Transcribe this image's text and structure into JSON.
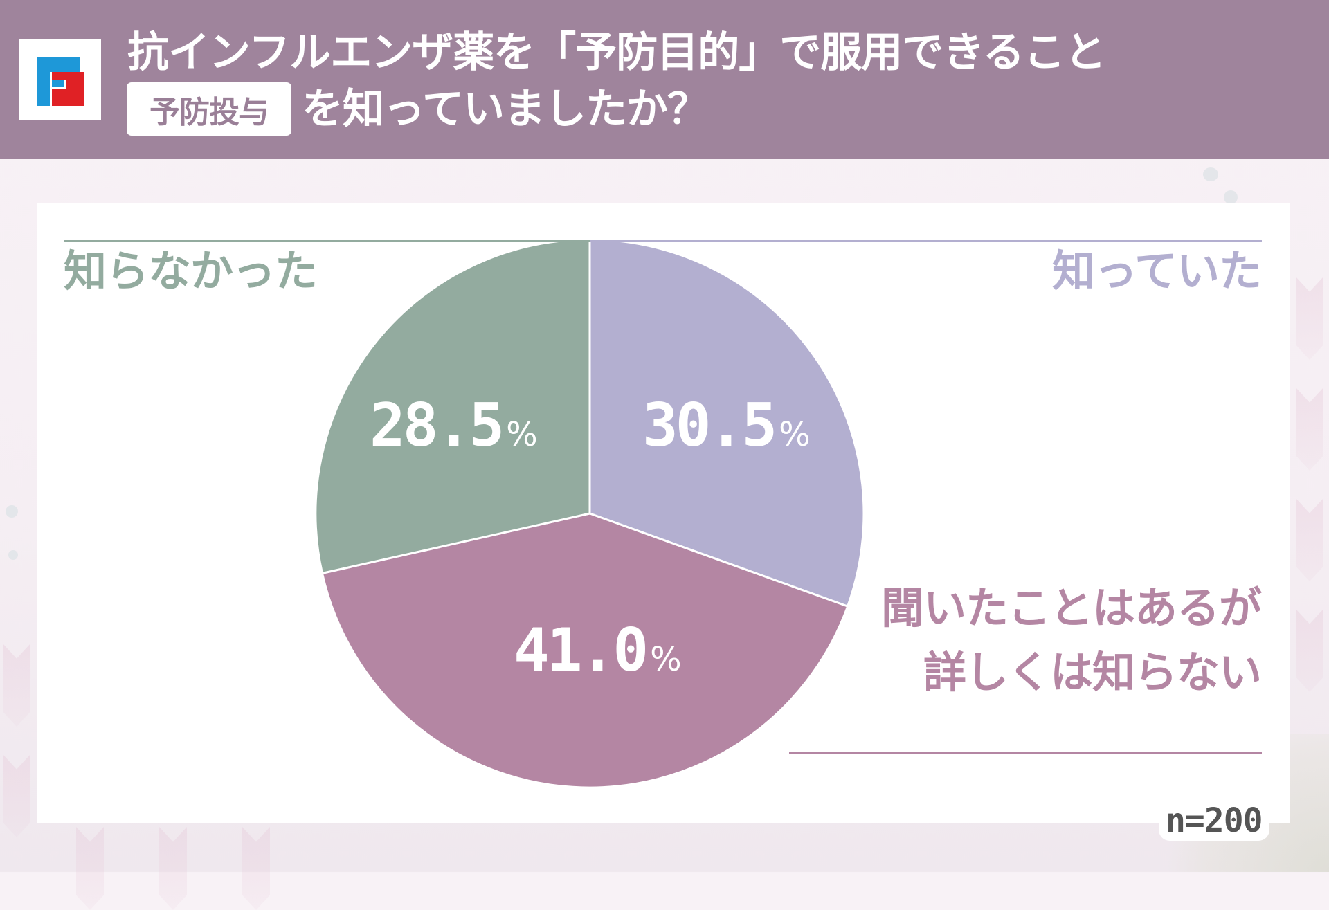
{
  "header": {
    "logo": "ff-logo-icon",
    "title_line1": "抗インフルエンザ薬を「予防目的」で服用できること",
    "badge": "予防投与",
    "title_line2": "を知っていましたか？",
    "colors": {
      "band": "#9f849c",
      "text": "#ffffff",
      "badge_text": "#9a7f97",
      "logo_blue": "#1e98d8",
      "logo_red": "#e02125"
    }
  },
  "chart_data": {
    "type": "pie",
    "title": "抗インフルエンザ薬を「予防目的」で服用できること（予防投与）を知っていましたか？",
    "start_angle_deg": 0,
    "direction": "clockwise",
    "categories": [
      "知っていた",
      "聞いたことはあるが詳しくは知らない",
      "知らなかった"
    ],
    "values": [
      30.5,
      41.0,
      28.5
    ],
    "unit": "%",
    "colors": [
      "#b3afd0",
      "#b486a3",
      "#93ab9f"
    ],
    "labels": [
      "30.5",
      "41.0",
      "28.5"
    ],
    "sample_size": "n=200",
    "legend_position": "outside-labels"
  },
  "labels": {
    "known": {
      "text": "知っていた",
      "color": "#b3afd0"
    },
    "heard_line1": "聞いたことはあるが",
    "heard_line2": "詳しくは知らない",
    "heard_color": "#b486a3",
    "unknown": {
      "text": "知らなかった",
      "color": "#93ab9f"
    },
    "percent_unit": "%"
  },
  "footer": {
    "sample": "n=200"
  }
}
